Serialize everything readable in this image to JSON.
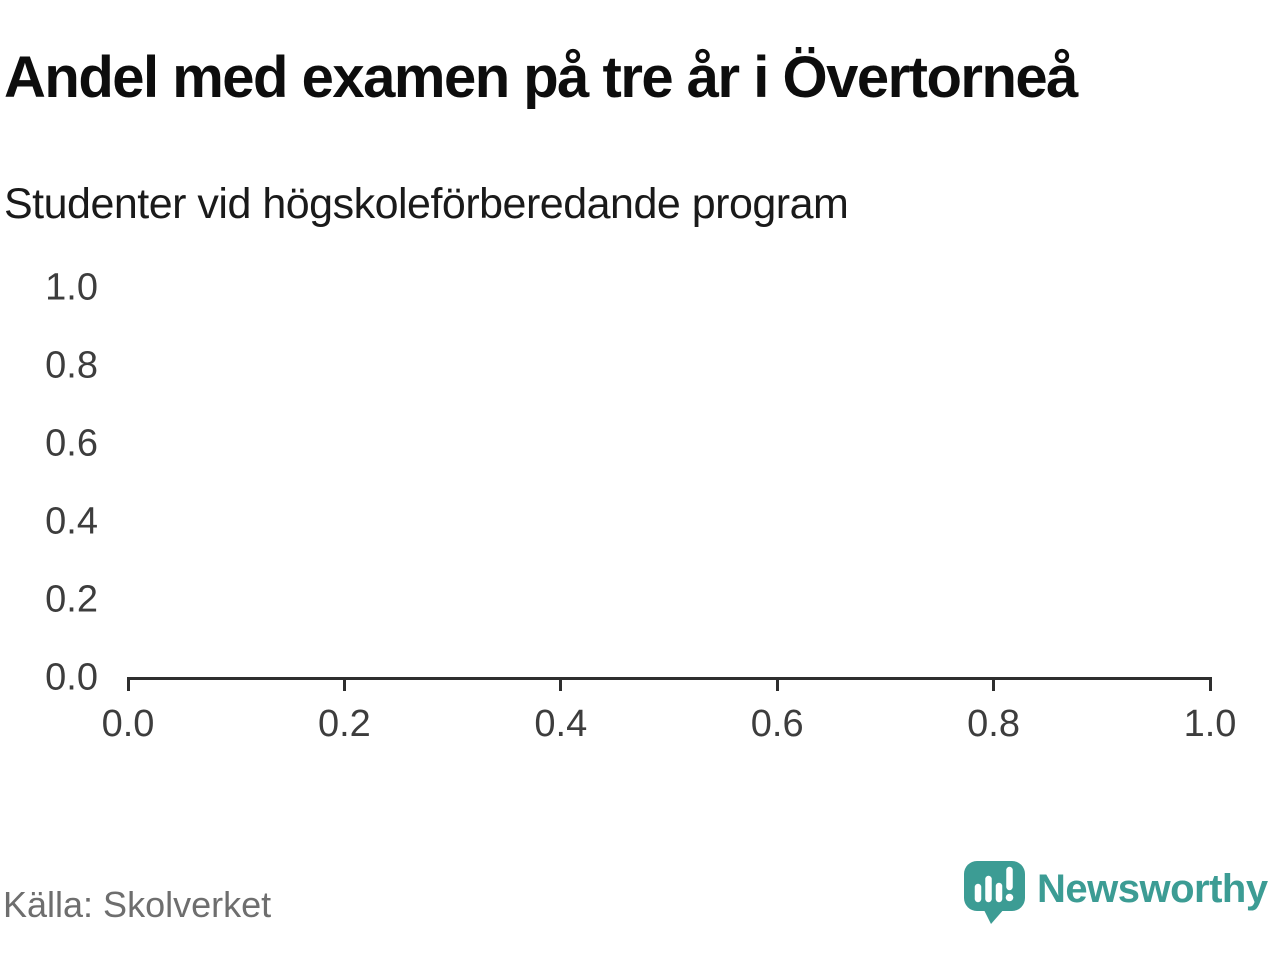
{
  "header": {
    "title": "Andel med examen på tre år i Övertorneå",
    "subtitle": "Studenter vid högskoleförberedande program"
  },
  "footer": {
    "source": "Källa: Skolverket",
    "brand": "Newsworthy"
  },
  "colors": {
    "brand_teal": "#3c9c94",
    "axis": "#2e2e2e",
    "tick_label": "#3d3d3d",
    "source_text": "#6e6e6e",
    "title_text": "#0d0d0d"
  },
  "chart_data": {
    "type": "line",
    "title": "Andel med examen på tre år i Övertorneå",
    "subtitle": "Studenter vid högskoleförberedande program",
    "series": [],
    "x_ticks": [
      "0.0",
      "0.2",
      "0.4",
      "0.6",
      "0.8",
      "1.0"
    ],
    "y_ticks": [
      "1.0",
      "0.8",
      "0.6",
      "0.4",
      "0.2",
      "0.0"
    ],
    "xlim": [
      0.0,
      1.0
    ],
    "ylim": [
      0.0,
      1.0
    ],
    "xlabel": "",
    "ylabel": "",
    "grid": false,
    "legend": false,
    "source": "Källa: Skolverket"
  }
}
